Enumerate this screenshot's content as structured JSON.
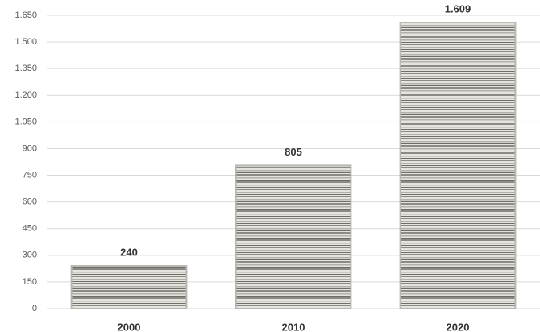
{
  "chart_data": {
    "type": "bar",
    "categories": [
      "2000",
      "2010",
      "2020"
    ],
    "values": [
      240,
      805,
      1609
    ],
    "value_labels": [
      "240",
      "805",
      "1.609"
    ],
    "color": "#b8b6b0",
    "ylim": [
      0,
      1650
    ],
    "yticks": [
      0,
      150,
      300,
      450,
      600,
      750,
      900,
      {
        "value": 1050,
        "label": "1.050"
      },
      {
        "value": 1200,
        "label": "1.200"
      },
      {
        "value": 1350,
        "label": "1.350"
      },
      {
        "value": 1500,
        "label": "1.500"
      },
      {
        "value": 1650,
        "label": "1.650"
      }
    ],
    "grid": true
  }
}
